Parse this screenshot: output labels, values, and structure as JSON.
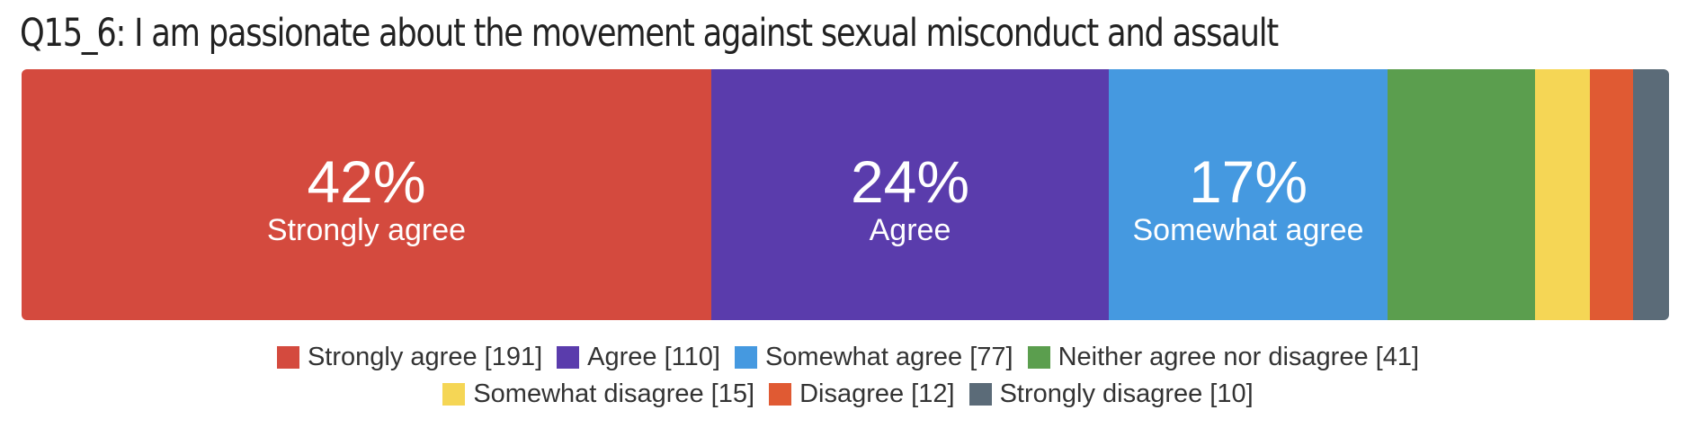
{
  "chart_data": {
    "type": "bar",
    "orientation": "horizontal-stacked-100",
    "title": "Q15_6: I am passionate about the movement against sexual misconduct and assault",
    "xlabel": "",
    "ylabel": "",
    "grid": false,
    "legend_position": "bottom",
    "categories": [
      "Strongly agree",
      "Agree",
      "Somewhat agree",
      "Neither agree nor disagree",
      "Somewhat disagree",
      "Disagree",
      "Strongly disagree"
    ],
    "counts": [
      191,
      110,
      77,
      41,
      15,
      12,
      10
    ],
    "segment_labels": [
      {
        "index": 0,
        "pct": "42%",
        "name": "Strongly agree"
      },
      {
        "index": 1,
        "pct": "24%",
        "name": "Agree"
      },
      {
        "index": 2,
        "pct": "17%",
        "name": "Somewhat agree"
      }
    ],
    "legend": [
      "Strongly agree [191]",
      "Agree [110]",
      "Somewhat agree [77]",
      "Neither agree nor disagree [41]",
      "Somewhat disagree [15]",
      "Disagree [12]",
      "Strongly disagree [10]"
    ],
    "colors": [
      "#d44a3e",
      "#5a3cac",
      "#4599e0",
      "#5b9e4e",
      "#f5d655",
      "#e05a33",
      "#5b6b78"
    ]
  }
}
